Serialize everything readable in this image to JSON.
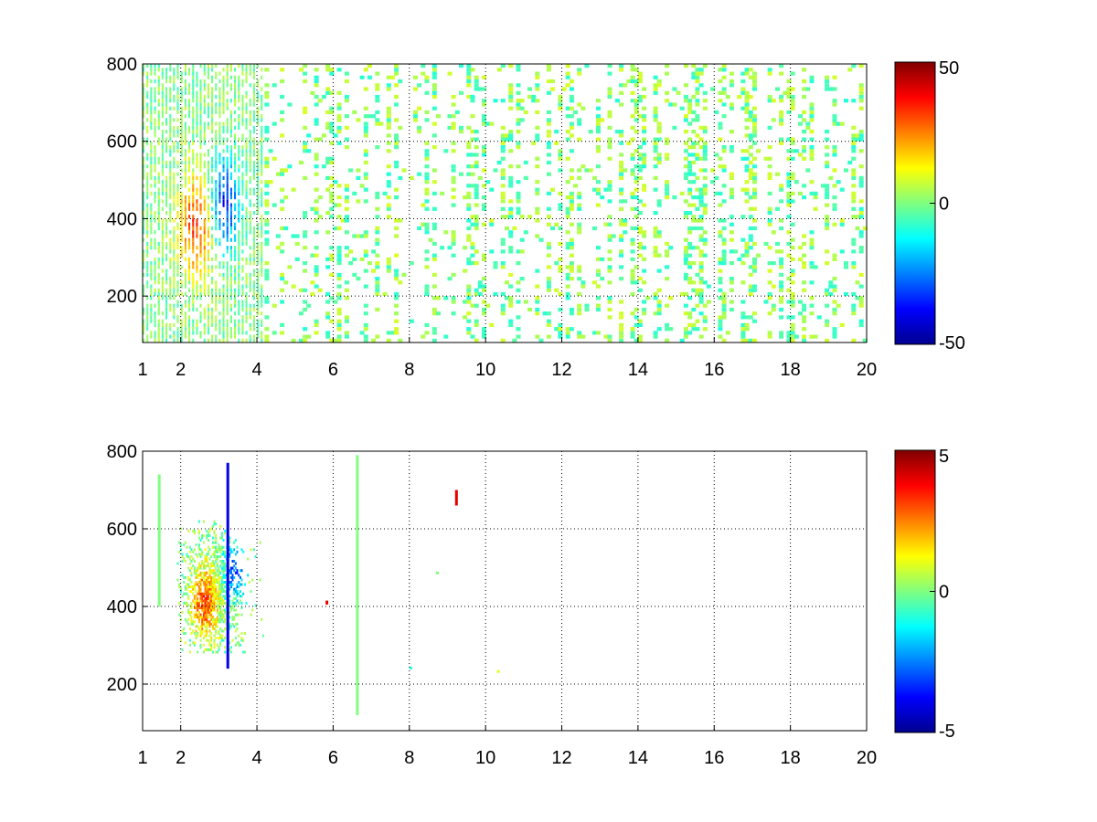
{
  "chart_data": [
    {
      "type": "heatmap",
      "title": "",
      "xlabel": "",
      "ylabel": "",
      "xlim": [
        1,
        20
      ],
      "ylim": [
        80,
        800
      ],
      "xticks": [
        1,
        2,
        4,
        6,
        8,
        10,
        12,
        14,
        16,
        18,
        20
      ],
      "yticks": [
        200,
        400,
        600,
        800
      ],
      "grid": true,
      "colormap": "jet",
      "clim": [
        -50,
        50
      ],
      "colorbar_ticks": [
        50,
        0,
        -50
      ],
      "hotspot": {
        "x_center": 2.8,
        "y_center": 420,
        "positive_x": 2.4,
        "negative_x": 3.1
      },
      "notes": "Dense noisy field; strong values between x=1.5 and 4; sparse vertical streaks of small values across the range."
    },
    {
      "type": "heatmap",
      "title": "",
      "xlabel": "",
      "ylabel": "",
      "xlim": [
        1,
        20
      ],
      "ylim": [
        80,
        800
      ],
      "xticks": [
        1,
        2,
        4,
        6,
        8,
        10,
        12,
        14,
        16,
        18,
        20
      ],
      "yticks": [
        200,
        400,
        600,
        800
      ],
      "grid": true,
      "colormap": "jet",
      "clim": [
        -5,
        5
      ],
      "colorbar_ticks": [
        5,
        0,
        -5
      ],
      "hotspot": {
        "x_center": 2.8,
        "y_center": 430,
        "positive_x": 2.6,
        "negative_x": 3.4
      },
      "isolated_marks": [
        {
          "x": 1.4,
          "y_from": 400,
          "y_to": 740,
          "value": 0
        },
        {
          "x": 3.2,
          "y_from": 240,
          "y_to": 770,
          "value": -4
        },
        {
          "x": 6.6,
          "y_from": 120,
          "y_to": 790,
          "value": 0
        },
        {
          "x": 9.2,
          "y_from": 660,
          "y_to": 700,
          "value": 4
        },
        {
          "x": 5.8,
          "y_from": 405,
          "y_to": 415,
          "value": 4
        },
        {
          "x": 8.0,
          "y_from": 240,
          "y_to": 245,
          "value": -1
        },
        {
          "x": 8.7,
          "y_from": 485,
          "y_to": 490,
          "value": 0
        },
        {
          "x": 10.3,
          "y_from": 232,
          "y_to": 236,
          "value": 1
        }
      ],
      "notes": "Mostly empty; cluster of values between x=2 and 4, y=300 to 600; a few isolated streaks."
    }
  ]
}
